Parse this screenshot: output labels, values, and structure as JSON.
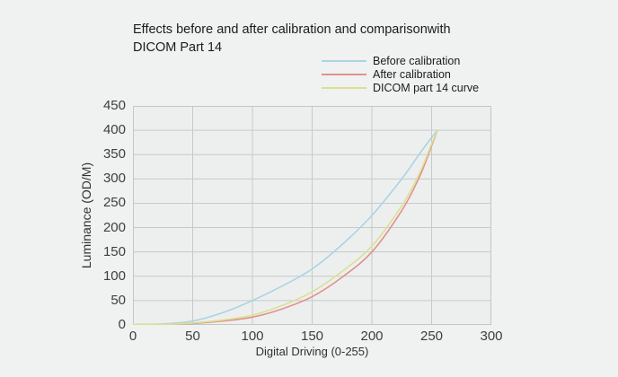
{
  "title": {
    "lines": [
      "Effects before and after calibration and comparisonwith",
      "DICOM Part 14"
    ]
  },
  "chart_data": {
    "type": "line",
    "title": "Effects before and after calibration and comparisonwith DICOM Part 14",
    "xlabel": "Digital Driving (0-255)",
    "ylabel": "Luminance (OD/M)",
    "xlim": [
      0,
      300
    ],
    "ylim": [
      0,
      450
    ],
    "x_ticks": [
      0,
      50,
      100,
      150,
      200,
      250,
      300
    ],
    "y_ticks": [
      0,
      50,
      100,
      150,
      200,
      250,
      300,
      350,
      400,
      450
    ],
    "grid": true,
    "legend_position": "top-right",
    "x": [
      0,
      25,
      50,
      75,
      100,
      125,
      150,
      175,
      200,
      225,
      240,
      250,
      255
    ],
    "series": [
      {
        "name": "Before calibration",
        "color": "#a8d5e2",
        "values": [
          0,
          2,
          8,
          25,
          50,
          80,
          115,
          165,
          225,
          300,
          352,
          385,
          400
        ]
      },
      {
        "name": "After calibration",
        "color": "#e3908f",
        "values": [
          0,
          1,
          3,
          8,
          16,
          33,
          58,
          98,
          150,
          235,
          305,
          368,
          400
        ]
      },
      {
        "name": "DICOM part 14 curve",
        "color": "#dbe092",
        "values": [
          0,
          1,
          4,
          10,
          20,
          40,
          68,
          110,
          162,
          245,
          312,
          372,
          400
        ]
      }
    ],
    "plot_bg": "#edefef",
    "grid_color": "#c6caca",
    "border_color": "#c3c7c7"
  }
}
